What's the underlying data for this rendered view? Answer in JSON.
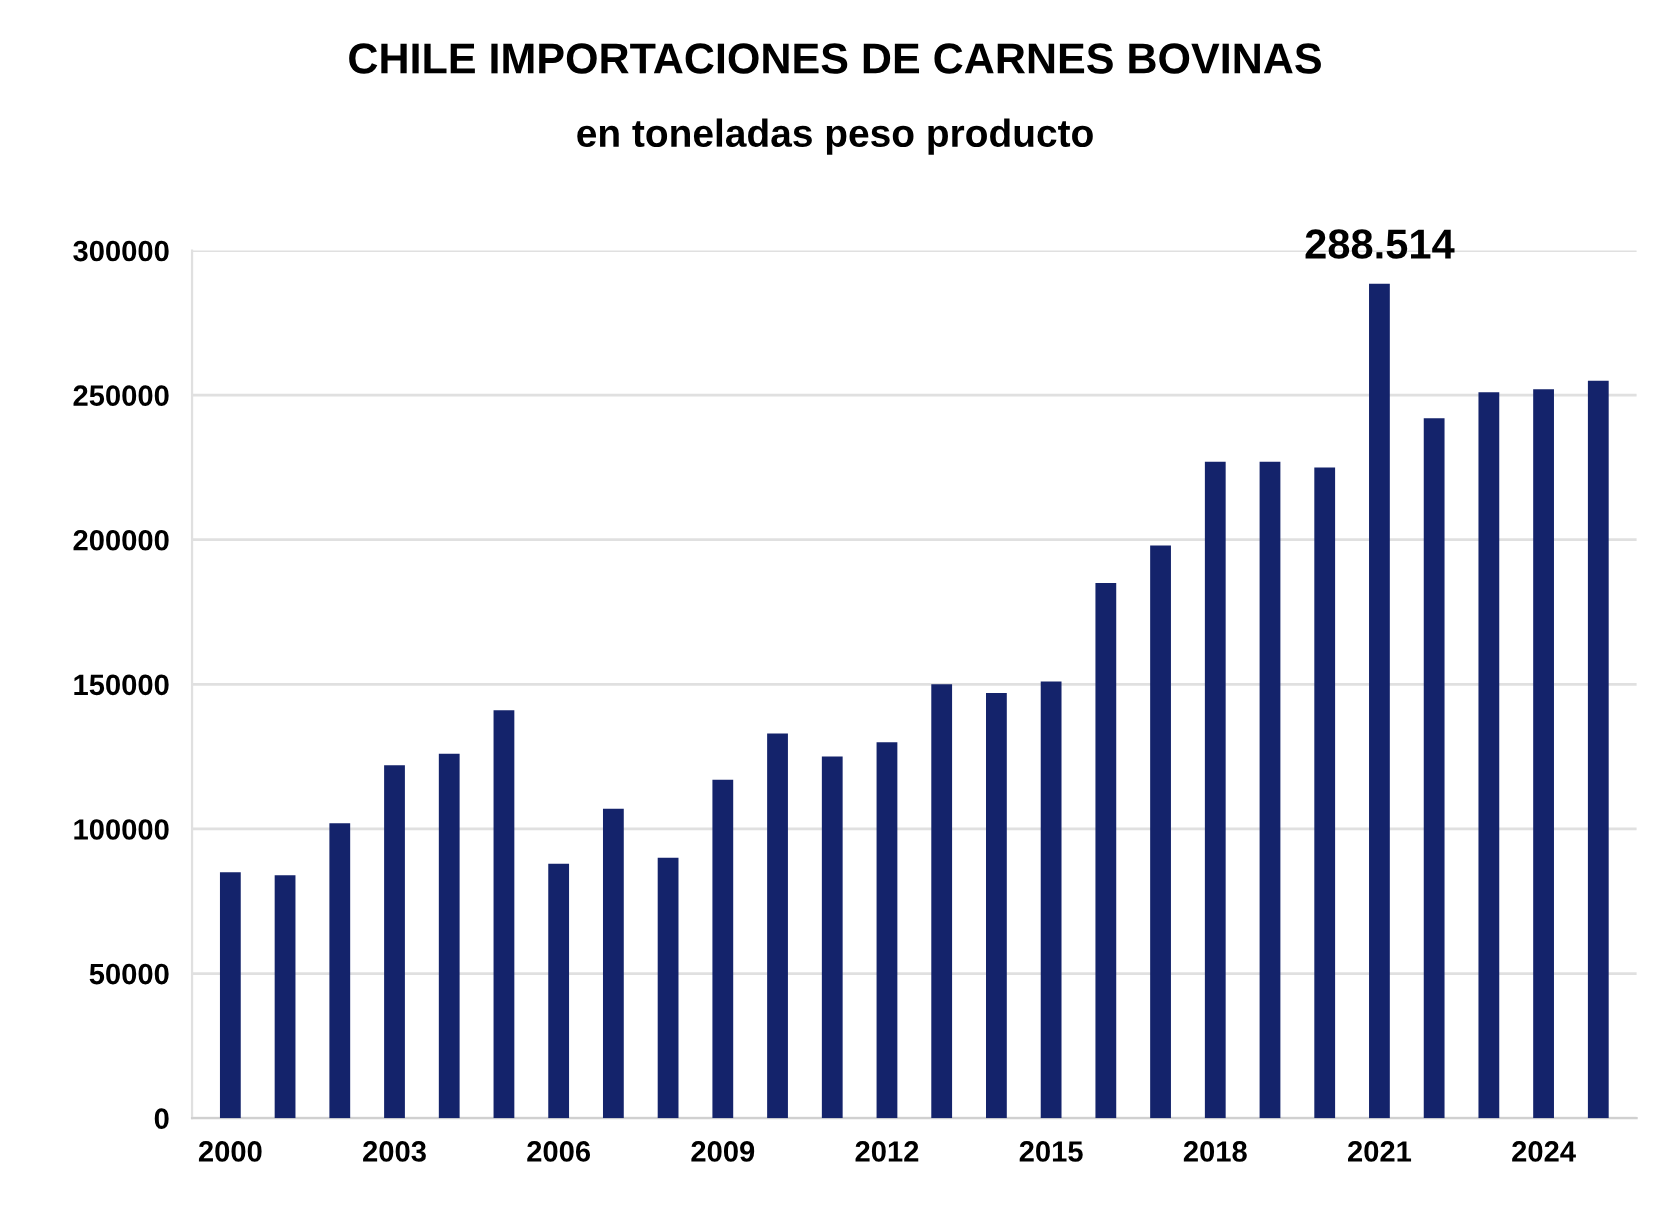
{
  "chart_data": {
    "type": "bar",
    "title": "CHILE IMPORTACIONES DE CARNES BOVINAS",
    "subtitle": "en toneladas peso producto",
    "categories": [
      "2000",
      null,
      null,
      "2003",
      null,
      null,
      "2006",
      null,
      null,
      "2009",
      null,
      null,
      "2012",
      null,
      null,
      "2015",
      null,
      null,
      "2018",
      null,
      null,
      "2021",
      null,
      null,
      "2024",
      null
    ],
    "values": [
      85000,
      84000,
      102000,
      122000,
      126000,
      141000,
      88000,
      107000,
      90000,
      117000,
      133000,
      125000,
      130000,
      150000,
      147000,
      151000,
      185000,
      198000,
      227000,
      227000,
      225000,
      288514,
      242000,
      251000,
      252000,
      255000
    ],
    "value_labels": [
      null,
      null,
      null,
      null,
      null,
      null,
      null,
      null,
      null,
      null,
      null,
      null,
      null,
      null,
      null,
      null,
      null,
      null,
      null,
      null,
      null,
      "288.514",
      null,
      null,
      null,
      null
    ],
    "color": "#14236b",
    "ylim": [
      0,
      300000
    ],
    "yticks": [
      0,
      50000,
      100000,
      150000,
      200000,
      250000,
      300000
    ],
    "grid": "y"
  }
}
